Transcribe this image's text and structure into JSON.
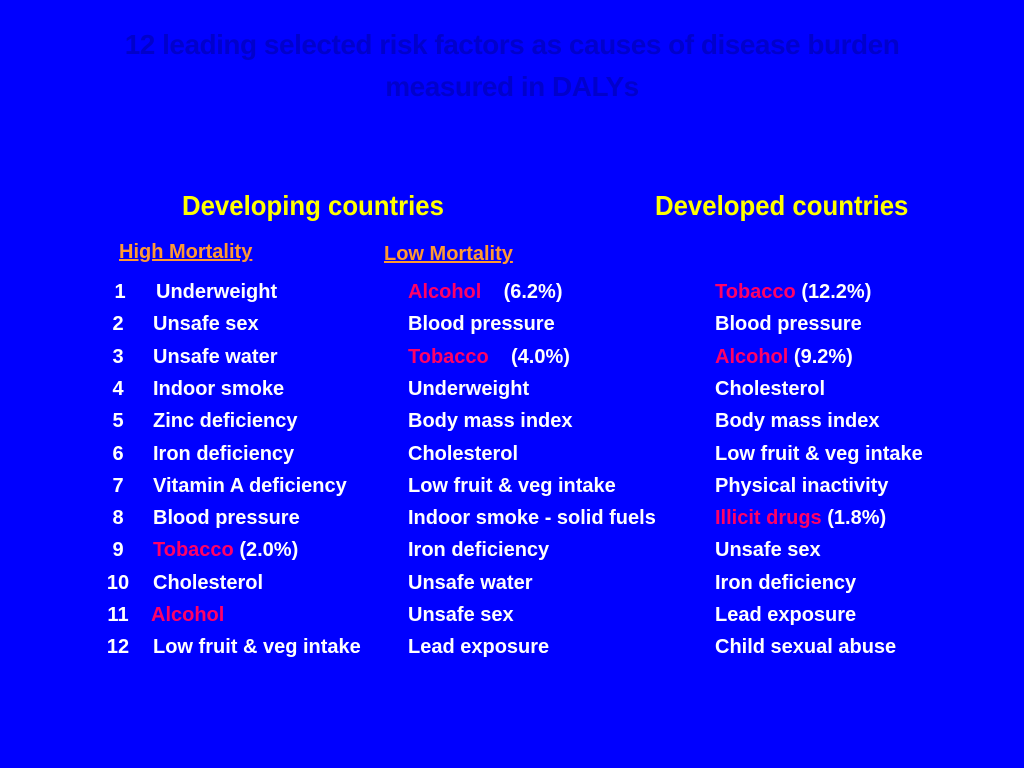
{
  "title": {
    "line1": "12 leading selected risk factors as causes of disease burden",
    "line2": "measured in DALYs"
  },
  "headings": {
    "developing": "Developing countries",
    "developed": "Developed countries",
    "high_mortality": "High Mortality",
    "low_mortality": "Low Mortality"
  },
  "colors": {
    "background": "#0000ff",
    "title": "#0000cc",
    "heading": "#ffff00",
    "subheading": "#ff9933",
    "text": "#ffffff",
    "highlight": "#ff0066"
  },
  "rows": [
    {
      "rank": "1",
      "high": {
        "name": "Underweight",
        "pct": "",
        "highlight": false
      },
      "low": {
        "name": "Alcohol",
        "pct": "(6.2%)",
        "highlight": true
      },
      "developed": {
        "name": "Tobacco",
        "pct": "(12.2%)",
        "highlight": true
      }
    },
    {
      "rank": "2",
      "high": {
        "name": "Unsafe sex",
        "pct": "",
        "highlight": false
      },
      "low": {
        "name": "Blood pressure",
        "pct": "",
        "highlight": false
      },
      "developed": {
        "name": "Blood pressure",
        "pct": "",
        "highlight": false
      }
    },
    {
      "rank": "3",
      "high": {
        "name": "Unsafe water",
        "pct": "",
        "highlight": false
      },
      "low": {
        "name": "Tobacco",
        "pct": "(4.0%)",
        "highlight": true
      },
      "developed": {
        "name": "Alcohol",
        "pct": "(9.2%)",
        "highlight": true
      }
    },
    {
      "rank": "4",
      "high": {
        "name": "Indoor smoke",
        "pct": "",
        "highlight": false
      },
      "low": {
        "name": "Underweight",
        "pct": "",
        "highlight": false
      },
      "developed": {
        "name": "Cholesterol",
        "pct": "",
        "highlight": false
      }
    },
    {
      "rank": "5",
      "high": {
        "name": "Zinc deficiency",
        "pct": "",
        "highlight": false
      },
      "low": {
        "name": "Body mass index",
        "pct": "",
        "highlight": false
      },
      "developed": {
        "name": "Body mass index",
        "pct": "",
        "highlight": false
      }
    },
    {
      "rank": "6",
      "high": {
        "name": "Iron deficiency",
        "pct": "",
        "highlight": false
      },
      "low": {
        "name": "Cholesterol",
        "pct": "",
        "highlight": false
      },
      "developed": {
        "name": "Low fruit & veg intake",
        "pct": "",
        "highlight": false
      }
    },
    {
      "rank": "7",
      "high": {
        "name": "Vitamin A deficiency",
        "pct": "",
        "highlight": false
      },
      "low": {
        "name": "Low fruit & veg intake",
        "pct": "",
        "highlight": false
      },
      "developed": {
        "name": "Physical inactivity",
        "pct": "",
        "highlight": false
      }
    },
    {
      "rank": "8",
      "high": {
        "name": "Blood pressure",
        "pct": "",
        "highlight": false
      },
      "low": {
        "name": "Indoor smoke - solid fuels",
        "pct": "",
        "highlight": false
      },
      "developed": {
        "name": "Illicit drugs",
        "pct": "(1.8%)",
        "highlight": true
      }
    },
    {
      "rank": "9",
      "high": {
        "name": "Tobacco",
        "pct": "(2.0%)",
        "highlight": true
      },
      "low": {
        "name": "Iron deficiency",
        "pct": "",
        "highlight": false
      },
      "developed": {
        "name": "Unsafe sex",
        "pct": "",
        "highlight": false
      }
    },
    {
      "rank": "10",
      "high": {
        "name": "Cholesterol",
        "pct": "",
        "highlight": false
      },
      "low": {
        "name": "Unsafe water",
        "pct": "",
        "highlight": false
      },
      "developed": {
        "name": "Iron deficiency",
        "pct": "",
        "highlight": false
      }
    },
    {
      "rank": "11",
      "high": {
        "name": "Alcohol",
        "pct": "",
        "highlight": true
      },
      "low": {
        "name": "Unsafe sex",
        "pct": "",
        "highlight": false
      },
      "developed": {
        "name": "Lead exposure",
        "pct": "",
        "highlight": false
      }
    },
    {
      "rank": "12",
      "high": {
        "name": "Low fruit & veg intake",
        "pct": "",
        "highlight": false
      },
      "low": {
        "name": "Lead exposure",
        "pct": "",
        "highlight": false
      },
      "developed": {
        "name": "Child sexual abuse",
        "pct": "",
        "highlight": false
      }
    }
  ]
}
